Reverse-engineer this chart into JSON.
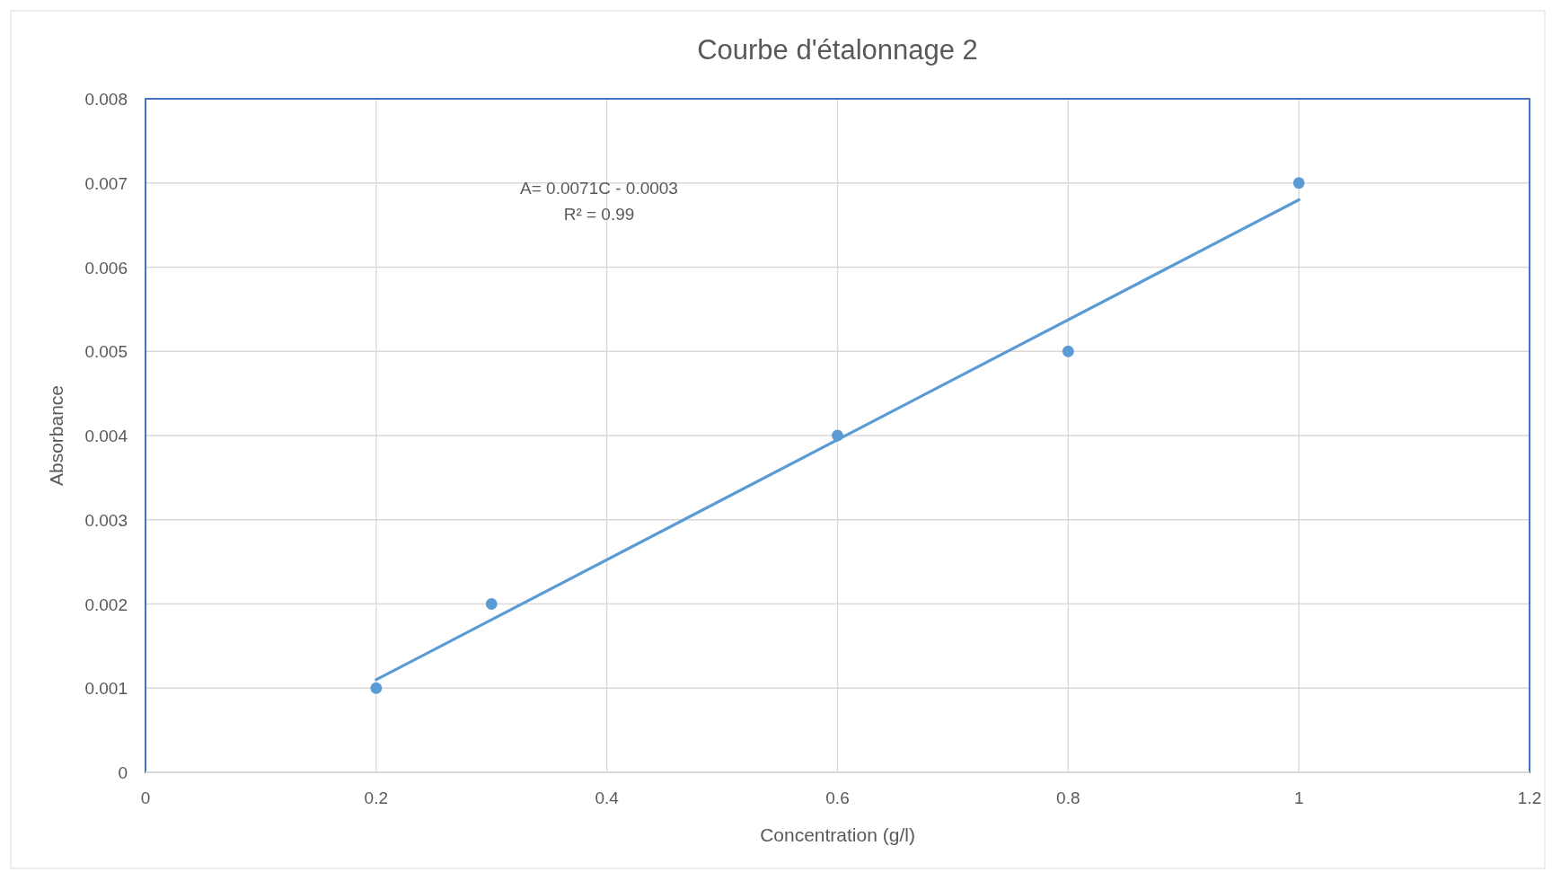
{
  "chart_data": {
    "type": "scatter",
    "title": "Courbe d'étalonnage 2",
    "xlabel": "Concentration (g/l)",
    "ylabel": "Absorbance",
    "annotations": [
      "A= 0.0071C - 0.0003",
      "R² = 0.99"
    ],
    "x": [
      0.2,
      0.3,
      0.6,
      0.8,
      1
    ],
    "series": [
      {
        "color": "#5b9bd5",
        "marker": "circle",
        "values": [
          0.001,
          0.002,
          0.004,
          0.005,
          0.007
        ]
      },
      {
        "type": "line",
        "marker": "none",
        "color": "#5b9bd5",
        "x": [
          0.2,
          1
        ],
        "values": [
          0.0011,
          0.0068
        ]
      }
    ],
    "xlim": [
      0,
      1.2
    ],
    "xticks": [
      0,
      0.2,
      0.4,
      0.6,
      0.8,
      1,
      1.2
    ],
    "ylim": [
      0,
      0.008
    ],
    "yticks": [
      0,
      0.001,
      0.002,
      0.003,
      0.004,
      0.005,
      0.006,
      0.007,
      0.008
    ],
    "grid": true,
    "line_style": "solid"
  }
}
